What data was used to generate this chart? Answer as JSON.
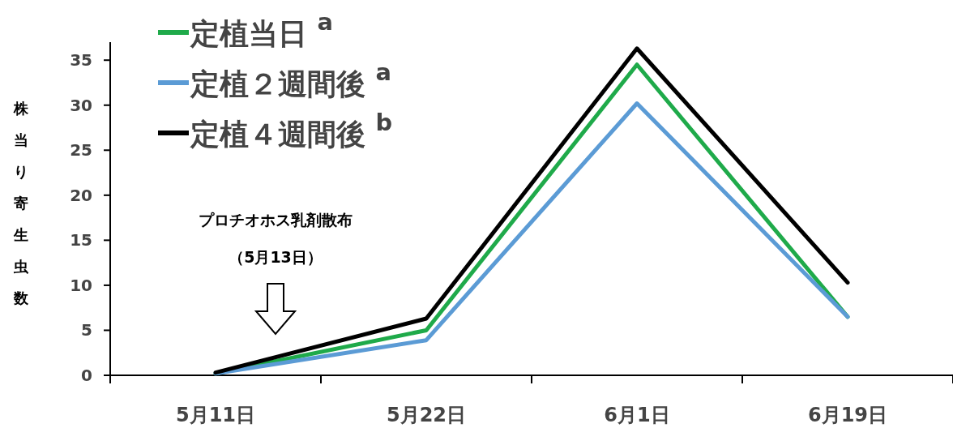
{
  "chart_data": {
    "type": "line",
    "ylabel": "株当り寄生虫数",
    "categories": [
      "5月11日",
      "5月22日",
      "6月1日",
      "6月19日"
    ],
    "series": [
      {
        "name": "定植当日 $^{a}$",
        "color": "#1faa4a",
        "values": [
          0.2,
          5.0,
          34.5,
          6.5
        ]
      },
      {
        "name": "定植２週間後 $^{a}$",
        "color": "#5b9bd5",
        "values": [
          0.2,
          3.9,
          30.2,
          6.5
        ]
      },
      {
        "name": "定植４週間後 $^{b}$",
        "color": "#000000",
        "values": [
          0.3,
          6.3,
          36.3,
          10.3
        ]
      }
    ],
    "ylim": [
      0,
      37
    ],
    "yticks": [
      0,
      5,
      10,
      15,
      20,
      25,
      30,
      35
    ],
    "grid": false,
    "legend": "top left",
    "marker": "none",
    "line_style": "solid",
    "annotations": [
      "プロチオホス乳剤散布",
      "（5月13日）"
    ]
  }
}
